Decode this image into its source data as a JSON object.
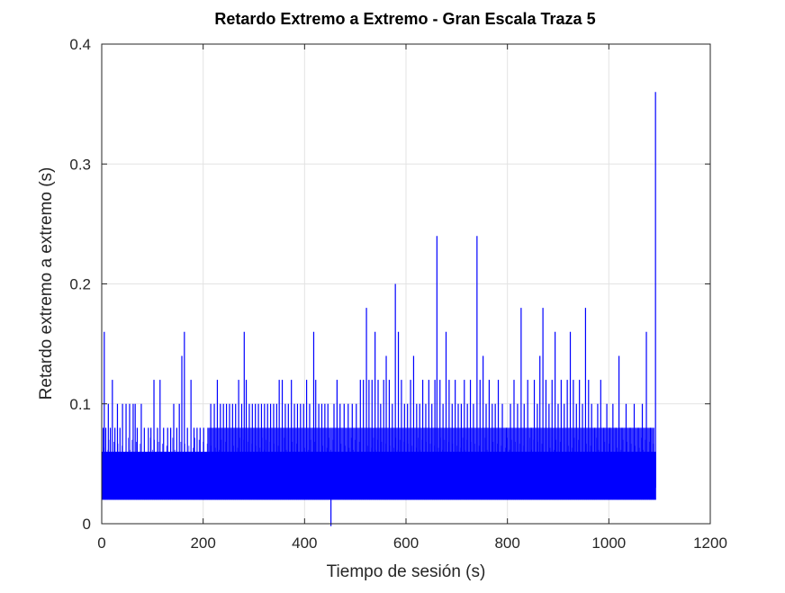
{
  "chart_data": {
    "type": "line",
    "title": "Retardo Extremo a Extremo - Gran Escala Traza 5",
    "xlabel": "Tiempo de sesión (s)",
    "ylabel": "Retardo extremo a extremo (s)",
    "xlim": [
      0,
      1200
    ],
    "ylim": [
      0,
      0.4
    ],
    "xticks": [
      "0",
      "200",
      "400",
      "600",
      "800",
      "1000",
      "1200"
    ],
    "yticks": [
      "0",
      "0.1",
      "0.2",
      "0.3",
      "0.4"
    ],
    "grid": true,
    "line_color": "#0000ff",
    "series": [
      {
        "baseline_band": [
          0.02,
          0.06
        ],
        "band_segments": [
          {
            "x": [
              0,
              208
            ],
            "top": 0.06
          },
          {
            "x": [
              208,
              1090
            ],
            "top": 0.08
          },
          {
            "x": [
              1090,
              1093
            ],
            "top": 0.06
          }
        ],
        "x_end": 1093,
        "spikes": [
          {
            "x": 3,
            "y": 0.08
          },
          {
            "x": 5,
            "y": 0.16
          },
          {
            "x": 8,
            "y": 0.08
          },
          {
            "x": 13,
            "y": 0.1
          },
          {
            "x": 17,
            "y": 0.08
          },
          {
            "x": 21,
            "y": 0.12
          },
          {
            "x": 26,
            "y": 0.08
          },
          {
            "x": 31,
            "y": 0.1
          },
          {
            "x": 36,
            "y": 0.08
          },
          {
            "x": 41,
            "y": 0.1
          },
          {
            "x": 48,
            "y": 0.1
          },
          {
            "x": 55,
            "y": 0.1
          },
          {
            "x": 62,
            "y": 0.1
          },
          {
            "x": 66,
            "y": 0.1
          },
          {
            "x": 70,
            "y": 0.08
          },
          {
            "x": 78,
            "y": 0.1
          },
          {
            "x": 84,
            "y": 0.08
          },
          {
            "x": 92,
            "y": 0.08
          },
          {
            "x": 97,
            "y": 0.08
          },
          {
            "x": 103,
            "y": 0.12
          },
          {
            "x": 110,
            "y": 0.08
          },
          {
            "x": 115,
            "y": 0.12
          },
          {
            "x": 122,
            "y": 0.08
          },
          {
            "x": 130,
            "y": 0.08
          },
          {
            "x": 136,
            "y": 0.08
          },
          {
            "x": 142,
            "y": 0.1
          },
          {
            "x": 148,
            "y": 0.08
          },
          {
            "x": 153,
            "y": 0.1
          },
          {
            "x": 158,
            "y": 0.14
          },
          {
            "x": 163,
            "y": 0.16
          },
          {
            "x": 169,
            "y": 0.08
          },
          {
            "x": 176,
            "y": 0.12
          },
          {
            "x": 182,
            "y": 0.08
          },
          {
            "x": 188,
            "y": 0.08
          },
          {
            "x": 194,
            "y": 0.08
          },
          {
            "x": 201,
            "y": 0.08
          },
          {
            "x": 215,
            "y": 0.1
          },
          {
            "x": 222,
            "y": 0.1
          },
          {
            "x": 228,
            "y": 0.12
          },
          {
            "x": 234,
            "y": 0.1
          },
          {
            "x": 240,
            "y": 0.1
          },
          {
            "x": 246,
            "y": 0.1
          },
          {
            "x": 252,
            "y": 0.1
          },
          {
            "x": 258,
            "y": 0.1
          },
          {
            "x": 264,
            "y": 0.1
          },
          {
            "x": 270,
            "y": 0.12
          },
          {
            "x": 276,
            "y": 0.1
          },
          {
            "x": 281,
            "y": 0.16
          },
          {
            "x": 285,
            "y": 0.12
          },
          {
            "x": 291,
            "y": 0.1
          },
          {
            "x": 297,
            "y": 0.1
          },
          {
            "x": 303,
            "y": 0.1
          },
          {
            "x": 309,
            "y": 0.1
          },
          {
            "x": 315,
            "y": 0.1
          },
          {
            "x": 321,
            "y": 0.1
          },
          {
            "x": 327,
            "y": 0.1
          },
          {
            "x": 333,
            "y": 0.1
          },
          {
            "x": 339,
            "y": 0.1
          },
          {
            "x": 345,
            "y": 0.1
          },
          {
            "x": 350,
            "y": 0.12
          },
          {
            "x": 356,
            "y": 0.12
          },
          {
            "x": 362,
            "y": 0.1
          },
          {
            "x": 368,
            "y": 0.1
          },
          {
            "x": 374,
            "y": 0.12
          },
          {
            "x": 380,
            "y": 0.1
          },
          {
            "x": 386,
            "y": 0.1
          },
          {
            "x": 392,
            "y": 0.1
          },
          {
            "x": 398,
            "y": 0.1
          },
          {
            "x": 404,
            "y": 0.12
          },
          {
            "x": 410,
            "y": 0.1
          },
          {
            "x": 418,
            "y": 0.16
          },
          {
            "x": 422,
            "y": 0.12
          },
          {
            "x": 428,
            "y": 0.1
          },
          {
            "x": 434,
            "y": 0.1
          },
          {
            "x": 440,
            "y": 0.1
          },
          {
            "x": 446,
            "y": 0.1
          },
          {
            "x": 452,
            "y": -0.002
          },
          {
            "x": 458,
            "y": 0.1
          },
          {
            "x": 464,
            "y": 0.12
          },
          {
            "x": 470,
            "y": 0.1
          },
          {
            "x": 478,
            "y": 0.1
          },
          {
            "x": 486,
            "y": 0.1
          },
          {
            "x": 494,
            "y": 0.1
          },
          {
            "x": 502,
            "y": 0.1
          },
          {
            "x": 510,
            "y": 0.12
          },
          {
            "x": 516,
            "y": 0.12
          },
          {
            "x": 522,
            "y": 0.18
          },
          {
            "x": 527,
            "y": 0.12
          },
          {
            "x": 533,
            "y": 0.12
          },
          {
            "x": 539,
            "y": 0.16
          },
          {
            "x": 545,
            "y": 0.12
          },
          {
            "x": 550,
            "y": 0.1
          },
          {
            "x": 556,
            "y": 0.12
          },
          {
            "x": 561,
            "y": 0.14
          },
          {
            "x": 567,
            "y": 0.12
          },
          {
            "x": 573,
            "y": 0.1
          },
          {
            "x": 579,
            "y": 0.2
          },
          {
            "x": 585,
            "y": 0.16
          },
          {
            "x": 591,
            "y": 0.12
          },
          {
            "x": 597,
            "y": 0.1
          },
          {
            "x": 603,
            "y": 0.1
          },
          {
            "x": 609,
            "y": 0.12
          },
          {
            "x": 615,
            "y": 0.14
          },
          {
            "x": 621,
            "y": 0.1
          },
          {
            "x": 627,
            "y": 0.1
          },
          {
            "x": 633,
            "y": 0.12
          },
          {
            "x": 639,
            "y": 0.1
          },
          {
            "x": 645,
            "y": 0.12
          },
          {
            "x": 651,
            "y": 0.1
          },
          {
            "x": 657,
            "y": 0.12
          },
          {
            "x": 661,
            "y": 0.24
          },
          {
            "x": 667,
            "y": 0.12
          },
          {
            "x": 673,
            "y": 0.1
          },
          {
            "x": 679,
            "y": 0.16
          },
          {
            "x": 685,
            "y": 0.12
          },
          {
            "x": 691,
            "y": 0.1
          },
          {
            "x": 697,
            "y": 0.12
          },
          {
            "x": 703,
            "y": 0.1
          },
          {
            "x": 709,
            "y": 0.1
          },
          {
            "x": 715,
            "y": 0.12
          },
          {
            "x": 721,
            "y": 0.1
          },
          {
            "x": 727,
            "y": 0.12
          },
          {
            "x": 733,
            "y": 0.1
          },
          {
            "x": 740,
            "y": 0.24
          },
          {
            "x": 746,
            "y": 0.12
          },
          {
            "x": 752,
            "y": 0.14
          },
          {
            "x": 758,
            "y": 0.1
          },
          {
            "x": 764,
            "y": 0.12
          },
          {
            "x": 770,
            "y": 0.1
          },
          {
            "x": 776,
            "y": 0.1
          },
          {
            "x": 782,
            "y": 0.12
          },
          {
            "x": 790,
            "y": 0.1
          },
          {
            "x": 798,
            "y": 0.08
          },
          {
            "x": 806,
            "y": 0.1
          },
          {
            "x": 813,
            "y": 0.12
          },
          {
            "x": 820,
            "y": 0.1
          },
          {
            "x": 827,
            "y": 0.18
          },
          {
            "x": 833,
            "y": 0.1
          },
          {
            "x": 840,
            "y": 0.12
          },
          {
            "x": 847,
            "y": 0.08
          },
          {
            "x": 853,
            "y": 0.12
          },
          {
            "x": 859,
            "y": 0.1
          },
          {
            "x": 864,
            "y": 0.14
          },
          {
            "x": 870,
            "y": 0.18
          },
          {
            "x": 876,
            "y": 0.12
          },
          {
            "x": 882,
            "y": 0.1
          },
          {
            "x": 888,
            "y": 0.12
          },
          {
            "x": 894,
            "y": 0.16
          },
          {
            "x": 900,
            "y": 0.1
          },
          {
            "x": 906,
            "y": 0.12
          },
          {
            "x": 912,
            "y": 0.1
          },
          {
            "x": 918,
            "y": 0.12
          },
          {
            "x": 924,
            "y": 0.16
          },
          {
            "x": 930,
            "y": 0.12
          },
          {
            "x": 936,
            "y": 0.1
          },
          {
            "x": 942,
            "y": 0.12
          },
          {
            "x": 948,
            "y": 0.1
          },
          {
            "x": 954,
            "y": 0.18
          },
          {
            "x": 960,
            "y": 0.12
          },
          {
            "x": 966,
            "y": 0.1
          },
          {
            "x": 972,
            "y": 0.08
          },
          {
            "x": 978,
            "y": 0.1
          },
          {
            "x": 984,
            "y": 0.12
          },
          {
            "x": 990,
            "y": 0.08
          },
          {
            "x": 996,
            "y": 0.1
          },
          {
            "x": 1002,
            "y": 0.08
          },
          {
            "x": 1008,
            "y": 0.1
          },
          {
            "x": 1014,
            "y": 0.08
          },
          {
            "x": 1020,
            "y": 0.14
          },
          {
            "x": 1026,
            "y": 0.08
          },
          {
            "x": 1034,
            "y": 0.1
          },
          {
            "x": 1042,
            "y": 0.08
          },
          {
            "x": 1050,
            "y": 0.1
          },
          {
            "x": 1058,
            "y": 0.08
          },
          {
            "x": 1066,
            "y": 0.1
          },
          {
            "x": 1074,
            "y": 0.16
          },
          {
            "x": 1082,
            "y": 0.08
          },
          {
            "x": 1088,
            "y": 0.06
          },
          {
            "x": 1092,
            "y": 0.36
          }
        ]
      }
    ]
  }
}
